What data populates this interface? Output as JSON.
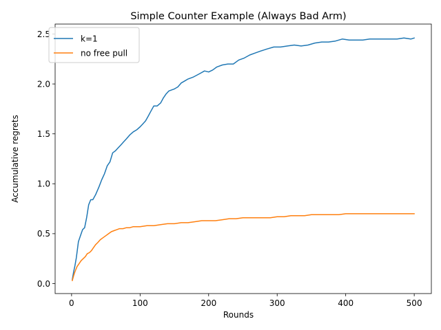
{
  "chart_data": {
    "type": "line",
    "title": "Simple Counter Example (Always Bad Arm)",
    "xlabel": "Rounds",
    "ylabel": "Accumulative regrets",
    "xlim": [
      -24,
      525
    ],
    "ylim": [
      -0.1,
      2.6
    ],
    "xticks": [
      0,
      100,
      200,
      300,
      400,
      500
    ],
    "xtick_labels": [
      "0",
      "100",
      "200",
      "300",
      "400",
      "500"
    ],
    "yticks": [
      0.0,
      0.5,
      1.0,
      1.5,
      2.0,
      2.5
    ],
    "ytick_labels": [
      "0.0",
      "0.5",
      "1.0",
      "1.5",
      "2.0",
      "2.5"
    ],
    "grid": false,
    "legend_position": "upper-left",
    "series": [
      {
        "name": "k=1",
        "color": "#1f77b4",
        "x": [
          1,
          3,
          5,
          7,
          10,
          13,
          16,
          19,
          22,
          25,
          28,
          31,
          35,
          40,
          44,
          48,
          52,
          56,
          60,
          64,
          68,
          72,
          76,
          80,
          85,
          90,
          95,
          100,
          104,
          108,
          112,
          116,
          120,
          125,
          130,
          134,
          138,
          142,
          146,
          150,
          155,
          160,
          165,
          170,
          178,
          186,
          194,
          200,
          206,
          212,
          220,
          228,
          236,
          244,
          252,
          260,
          268,
          276,
          285,
          295,
          305,
          315,
          325,
          335,
          345,
          355,
          365,
          375,
          385,
          395,
          405,
          415,
          425,
          435,
          445,
          455,
          465,
          475,
          485,
          495,
          500
        ],
        "values": [
          0.04,
          0.12,
          0.18,
          0.26,
          0.42,
          0.48,
          0.54,
          0.56,
          0.66,
          0.79,
          0.84,
          0.84,
          0.89,
          0.97,
          1.04,
          1.1,
          1.18,
          1.22,
          1.31,
          1.33,
          1.36,
          1.39,
          1.42,
          1.45,
          1.49,
          1.52,
          1.54,
          1.57,
          1.6,
          1.63,
          1.68,
          1.73,
          1.78,
          1.78,
          1.81,
          1.86,
          1.9,
          1.93,
          1.94,
          1.95,
          1.97,
          2.01,
          2.03,
          2.05,
          2.07,
          2.1,
          2.13,
          2.12,
          2.14,
          2.17,
          2.19,
          2.2,
          2.2,
          2.24,
          2.26,
          2.29,
          2.31,
          2.33,
          2.35,
          2.37,
          2.37,
          2.38,
          2.39,
          2.38,
          2.39,
          2.41,
          2.42,
          2.42,
          2.43,
          2.45,
          2.44,
          2.44,
          2.44,
          2.45,
          2.45,
          2.45,
          2.45,
          2.45,
          2.46,
          2.45,
          2.46
        ]
      },
      {
        "name": "no free pull",
        "color": "#ff7f0e",
        "x": [
          1,
          3,
          5,
          8,
          11,
          14,
          17,
          20,
          23,
          26,
          29,
          32,
          35,
          38,
          42,
          46,
          50,
          54,
          58,
          62,
          66,
          70,
          75,
          80,
          85,
          90,
          95,
          100,
          110,
          120,
          130,
          140,
          150,
          160,
          170,
          180,
          190,
          200,
          210,
          220,
          230,
          240,
          250,
          260,
          270,
          280,
          290,
          300,
          310,
          320,
          330,
          340,
          350,
          360,
          370,
          380,
          390,
          400,
          410,
          420,
          430,
          440,
          450,
          460,
          470,
          480,
          490,
          500
        ],
        "values": [
          0.03,
          0.08,
          0.12,
          0.17,
          0.2,
          0.23,
          0.25,
          0.27,
          0.3,
          0.31,
          0.33,
          0.36,
          0.39,
          0.41,
          0.44,
          0.46,
          0.48,
          0.5,
          0.52,
          0.53,
          0.54,
          0.55,
          0.55,
          0.56,
          0.56,
          0.57,
          0.57,
          0.57,
          0.58,
          0.58,
          0.59,
          0.6,
          0.6,
          0.61,
          0.61,
          0.62,
          0.63,
          0.63,
          0.63,
          0.64,
          0.65,
          0.65,
          0.66,
          0.66,
          0.66,
          0.66,
          0.66,
          0.67,
          0.67,
          0.68,
          0.68,
          0.68,
          0.69,
          0.69,
          0.69,
          0.69,
          0.69,
          0.7,
          0.7,
          0.7,
          0.7,
          0.7,
          0.7,
          0.7,
          0.7,
          0.7,
          0.7,
          0.7
        ]
      }
    ]
  }
}
